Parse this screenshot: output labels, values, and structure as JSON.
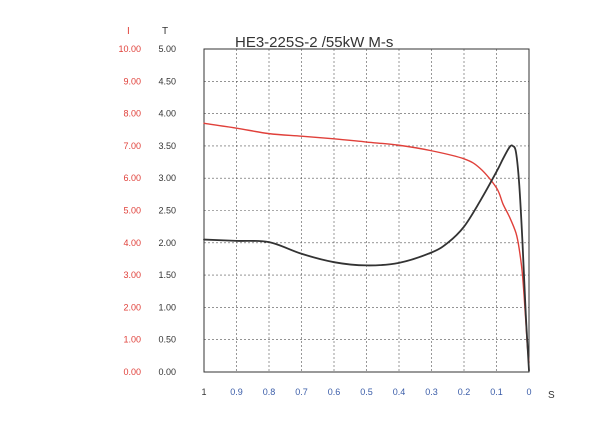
{
  "chart_data": {
    "type": "line",
    "title": "HE3-225S-2  /55kW  M-s",
    "grid": true,
    "x_axis": {
      "label": "S",
      "range": [
        1,
        0
      ],
      "reversed": true,
      "ticks": [
        "1",
        "0.9",
        "0.8",
        "0.7",
        "0.6",
        "0.5",
        "0.4",
        "0.3",
        "0.2",
        "0.1",
        "0"
      ]
    },
    "y_axis_left_outer": {
      "label": "I",
      "range": [
        0,
        10
      ],
      "ticks": [
        "0.00",
        "1.00",
        "2.00",
        "3.00",
        "4.00",
        "5.00",
        "6.00",
        "7.00",
        "8.00",
        "9.00",
        "10.00"
      ]
    },
    "y_axis_left_inner": {
      "label": "T",
      "range": [
        0,
        5
      ],
      "ticks": [
        "0.00",
        "0.50",
        "1.00",
        "1.50",
        "2.00",
        "2.50",
        "3.00",
        "3.50",
        "4.00",
        "4.50",
        "5.00"
      ]
    },
    "series": [
      {
        "key": "current",
        "axis": "I",
        "color": "#e0403a",
        "x": [
          1.0,
          0.9,
          0.8,
          0.7,
          0.6,
          0.5,
          0.4,
          0.3,
          0.2,
          0.15,
          0.1,
          0.08,
          0.06,
          0.04,
          0.03,
          0.02,
          0.01,
          0.005,
          0.0
        ],
        "y": [
          7.7,
          7.55,
          7.38,
          7.3,
          7.22,
          7.12,
          7.02,
          6.85,
          6.6,
          6.3,
          5.7,
          5.2,
          4.8,
          4.3,
          3.8,
          3.0,
          1.6,
          0.8,
          0.3
        ]
      },
      {
        "key": "torque",
        "axis": "T",
        "color": "#333333",
        "x": [
          1.0,
          0.9,
          0.8,
          0.7,
          0.6,
          0.5,
          0.4,
          0.3,
          0.25,
          0.2,
          0.15,
          0.1,
          0.08,
          0.06,
          0.05,
          0.04,
          0.03,
          0.02,
          0.01,
          0.0
        ],
        "y": [
          2.05,
          2.03,
          2.01,
          1.83,
          1.7,
          1.65,
          1.69,
          1.85,
          2.0,
          2.25,
          2.65,
          3.1,
          3.3,
          3.48,
          3.5,
          3.4,
          2.9,
          2.0,
          0.9,
          0.02
        ]
      }
    ]
  }
}
